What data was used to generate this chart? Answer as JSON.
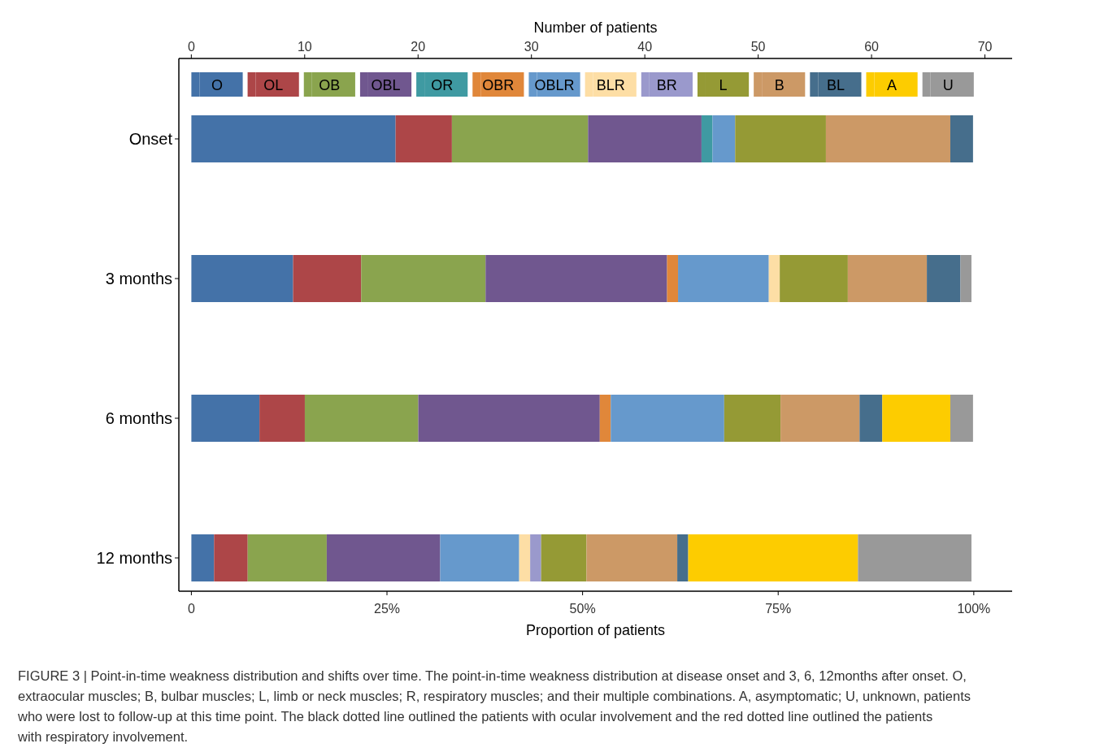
{
  "chart_data": {
    "type": "bar",
    "orientation": "horizontal",
    "stacked": true,
    "legend": "top",
    "categories": [
      "Onset",
      "3 months",
      "6 months",
      "12 months"
    ],
    "xlabel": "Proportion of patients",
    "x2label": "Number of patients",
    "xlim": [
      -1.6,
      104.9
    ],
    "xticks": [
      0,
      {
        "value": 25,
        "label": "25%"
      },
      {
        "value": 50,
        "label": "50%"
      },
      {
        "value": 75,
        "label": "75%"
      },
      {
        "value": 100,
        "label": "100%"
      }
    ],
    "x2lim": [
      -1.1,
      72.4
    ],
    "x2ticks": [
      0,
      10,
      20,
      30,
      40,
      50,
      60,
      70
    ],
    "series": [
      {
        "name": "O",
        "color": "#4472a8",
        "values": [
          26.1,
          13.0,
          8.7,
          2.9
        ]
      },
      {
        "name": "OL",
        "color": "#ad4648",
        "values": [
          7.2,
          8.7,
          5.8,
          4.3
        ]
      },
      {
        "name": "OB",
        "color": "#8aa44e",
        "values": [
          17.4,
          15.9,
          14.5,
          10.1
        ]
      },
      {
        "name": "OBL",
        "color": "#70578f",
        "values": [
          14.5,
          23.2,
          23.2,
          14.5
        ]
      },
      {
        "name": "OR",
        "color": "#3f9aa2",
        "values": [
          1.4,
          null,
          null,
          null
        ]
      },
      {
        "name": "OBR",
        "color": "#e0873a",
        "values": [
          null,
          1.4,
          1.4,
          null
        ]
      },
      {
        "name": "OBLR",
        "color": "#6699cc",
        "values": [
          2.9,
          11.6,
          14.5,
          10.1
        ]
      },
      {
        "name": "BLR",
        "color": "#fddea5",
        "values": [
          null,
          1.4,
          null,
          1.4
        ]
      },
      {
        "name": "BR",
        "color": "#9a99cc",
        "values": [
          null,
          null,
          null,
          1.4
        ]
      },
      {
        "name": "L",
        "color": "#959a35",
        "values": [
          11.6,
          8.7,
          7.2,
          5.8
        ]
      },
      {
        "name": "B",
        "color": "#cc9966",
        "values": [
          15.9,
          10.1,
          10.1,
          11.6
        ]
      },
      {
        "name": "BL",
        "color": "#466e8c",
        "values": [
          2.9,
          4.3,
          2.9,
          1.4
        ]
      },
      {
        "name": "A",
        "color": "#fdcc00",
        "values": [
          null,
          null,
          8.7,
          21.7
        ]
      },
      {
        "name": "U",
        "color": "#999999",
        "values": [
          null,
          1.4,
          2.9,
          14.5
        ]
      }
    ],
    "annotations": [
      "FIGURE 3 | Point-in-time weakness distribution and shifts over time. The point-in-time weakness distribution at disease onset and 3, 6, 12months after onset. O, extraocular muscles; B, bulbar muscles; L, limb or neck muscles; R, respiratory muscles; and their multiple combinations. A, asymptomatic; U, unknown, patients who were lost to follow-up at this time point. The black dotted line outlined the patients with ocular involvement and the red dotted line outlined the patients with respiratory involvement."
    ]
  }
}
